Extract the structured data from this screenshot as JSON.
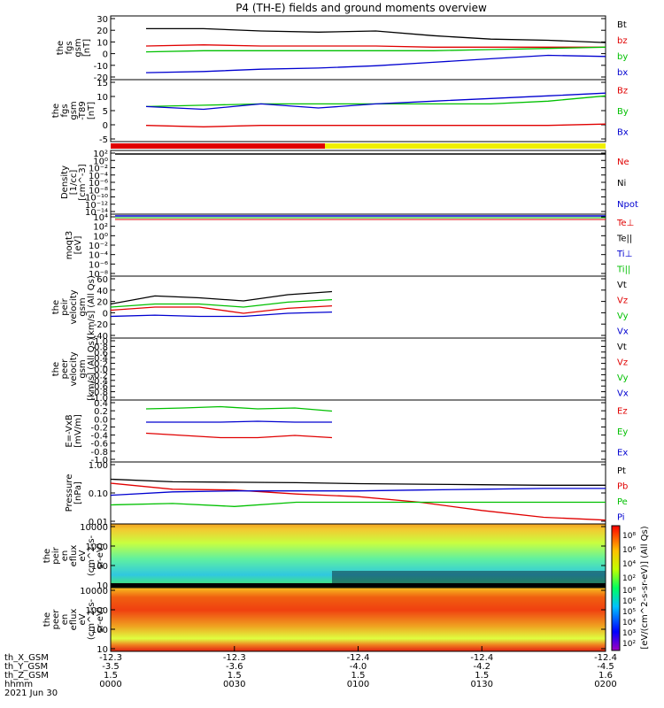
{
  "title": "P4 (TH-E) fields and ground moments overview",
  "colors": {
    "black": "#000000",
    "red": "#e00000",
    "green": "#00c000",
    "blue": "#0000d0",
    "yellow": "#f0f000"
  },
  "x_ticks": [
    "0000",
    "0030",
    "0100",
    "0130",
    "0200"
  ],
  "footer": {
    "row_labels": [
      "th_X_GSM",
      "th_Y_GSM",
      "th_Z_GSM",
      "hhmm",
      "2021 Jun 30"
    ],
    "x_values": [
      "-12.3",
      "-12.3",
      "-12.4",
      "-12.4",
      "-12.4"
    ],
    "y_values": [
      "-3.5",
      "-3.6",
      "-4.0",
      "-4.2",
      "-4.5"
    ],
    "z_values": [
      "1.5",
      "1.5",
      "1.5",
      "1.5",
      "1.6"
    ]
  },
  "colorbar": {
    "label": "[eV/(cm^2-s-sr-eV)] (All Qs)",
    "ticks_top": [
      "10^8",
      "10^6",
      "10^4",
      "10^2"
    ],
    "ticks_bottom": [
      "10^8",
      "10^6",
      "10^5",
      "10^4",
      "10^3",
      "10^2"
    ]
  },
  "chart_data": [
    {
      "type": "line",
      "panel": "fgs_gsm",
      "ylabel": [
        "the",
        "fgs",
        "gsm",
        "[nT]"
      ],
      "yticks": [
        "30",
        "20",
        "10",
        "0",
        "-10",
        "-20"
      ],
      "ylim": [
        -25,
        30
      ],
      "x": [
        0,
        15,
        30,
        45,
        60,
        75,
        90,
        105,
        120
      ],
      "series": [
        {
          "name": "Bt",
          "color": "black",
          "values": [
            19,
            19,
            17,
            16,
            17,
            13,
            10,
            9,
            7
          ]
        },
        {
          "name": "bz",
          "color": "red",
          "values": [
            4,
            5,
            4,
            4,
            4,
            3,
            3,
            3,
            3
          ]
        },
        {
          "name": "by",
          "color": "green",
          "values": [
            -1,
            0,
            0,
            0,
            0,
            0,
            1,
            2,
            3
          ]
        },
        {
          "name": "bx",
          "color": "blue",
          "values": [
            -19,
            -18,
            -16,
            -15,
            -13,
            -10,
            -7,
            -4,
            -5
          ]
        }
      ]
    },
    {
      "type": "line",
      "panel": "fgs_gse",
      "ylabel": [
        "the",
        "fgs",
        "gsm",
        "-T89",
        "[nT]"
      ],
      "yticks": [
        "15",
        "10",
        "5",
        "0",
        "-5"
      ],
      "ylim": [
        -8,
        15
      ],
      "x": [
        0,
        15,
        30,
        45,
        60,
        75,
        90,
        105,
        120
      ],
      "series": [
        {
          "name": "Bz",
          "color": "red",
          "values": [
            -2,
            -2.5,
            -2,
            -2,
            -2,
            -2,
            -2,
            -2,
            -1.5
          ]
        },
        {
          "name": "By",
          "color": "green",
          "values": [
            5,
            5.5,
            6,
            6,
            6,
            6,
            6,
            7,
            9
          ]
        },
        {
          "name": "Bx",
          "color": "blue",
          "values": [
            5,
            4,
            6,
            4.5,
            6,
            7,
            8,
            9,
            10
          ]
        }
      ]
    },
    {
      "type": "line",
      "panel": "density",
      "ylabel": [
        "Density",
        "[1/cc]",
        "[cm^-3]"
      ],
      "yticks": [
        "10^2",
        "10^0",
        "10^-2",
        "10^-4",
        "10^-6",
        "10^-8",
        "10^-10",
        "10^-12",
        "10^-14"
      ],
      "series": [
        {
          "name": "Ne",
          "color": "red"
        },
        {
          "name": "Ni",
          "color": "black"
        },
        {
          "name": "Npot",
          "color": "blue"
        }
      ]
    },
    {
      "type": "line",
      "panel": "temperature",
      "ylabel": [
        "moqt3",
        "[eV]"
      ],
      "yticks": [
        "10^4",
        "10^2",
        "10^0",
        "10^-2",
        "10^-4",
        "10^-6",
        "10^-8"
      ],
      "series": [
        {
          "name": "Te⊥",
          "color": "red"
        },
        {
          "name": "Te||",
          "color": "black"
        },
        {
          "name": "Ti⊥",
          "color": "blue"
        },
        {
          "name": "Ti||",
          "color": "green"
        }
      ]
    },
    {
      "type": "line",
      "panel": "peir_velocity",
      "ylabel": [
        "the",
        "peir",
        "velocity",
        "gsm",
        "[km/s] (All Qs)"
      ],
      "yticks": [
        "60",
        "40",
        "20",
        "0",
        "-20",
        "-40"
      ],
      "ylim": [
        -40,
        60
      ],
      "x": [
        0,
        10,
        20,
        30,
        40,
        50
      ],
      "series": [
        {
          "name": "Vt",
          "color": "black",
          "values": [
            15,
            28,
            25,
            20,
            30,
            35
          ]
        },
        {
          "name": "Vz",
          "color": "red",
          "values": [
            5,
            10,
            10,
            0,
            8,
            12
          ]
        },
        {
          "name": "Vy",
          "color": "green",
          "values": [
            10,
            15,
            15,
            10,
            18,
            22
          ]
        },
        {
          "name": "Vx",
          "color": "blue",
          "values": [
            -5,
            -3,
            -5,
            -5,
            0,
            2
          ]
        }
      ]
    },
    {
      "type": "line",
      "panel": "peer_velocity",
      "ylabel": [
        "the",
        "peer",
        "velocity",
        "gsm",
        "[km/s] (All Qs)"
      ],
      "yticks": [
        "1.0",
        "0.8",
        "0.6",
        "0.4",
        "0.2",
        "0.0",
        "-0.2",
        "-0.4",
        "-0.6",
        "-0.8",
        "-1.0"
      ],
      "series": [
        {
          "name": "Vt",
          "color": "black"
        },
        {
          "name": "Vz",
          "color": "red"
        },
        {
          "name": "Vy",
          "color": "green"
        },
        {
          "name": "Vx",
          "color": "blue"
        }
      ]
    },
    {
      "type": "line",
      "panel": "efield",
      "ylabel": [
        "E=-VxB",
        "[mV/m]"
      ],
      "yticks": [
        "0.4",
        "0.2",
        "0.0",
        "-0.2",
        "-0.4",
        "-0.6",
        "-0.8",
        "-1.0"
      ],
      "ylim": [
        -1.0,
        0.4
      ],
      "x": [
        0,
        10,
        20,
        30,
        40,
        50
      ],
      "series": [
        {
          "name": "Ez",
          "color": "red",
          "values": [
            -0.35,
            -0.4,
            -0.45,
            -0.45,
            -0.4,
            -0.45
          ]
        },
        {
          "name": "Ey",
          "color": "green",
          "values": [
            0.2,
            0.22,
            0.25,
            0.2,
            0.22,
            0.15
          ]
        },
        {
          "name": "Ex",
          "color": "blue",
          "values": [
            -0.1,
            -0.1,
            -0.1,
            -0.08,
            -0.1,
            -0.1
          ]
        }
      ]
    },
    {
      "type": "line",
      "panel": "pressure",
      "ylabel": [
        "Pressure",
        "[nPa]"
      ],
      "yticks": [
        "1.00",
        "0.10",
        "0.01"
      ],
      "x": [
        0,
        15,
        30,
        45,
        60,
        75,
        90,
        105,
        120
      ],
      "series": [
        {
          "name": "Pt",
          "color": "black",
          "values": [
            0.35,
            0.28,
            0.27,
            0.26,
            0.24,
            0.23,
            0.22,
            0.21,
            0.21
          ]
        },
        {
          "name": "Pb",
          "color": "red",
          "values": [
            0.25,
            0.15,
            0.14,
            0.1,
            0.08,
            0.05,
            0.025,
            0.014,
            0.011
          ]
        },
        {
          "name": "Pe",
          "color": "green",
          "values": [
            0.04,
            0.045,
            0.035,
            0.05,
            0.05,
            0.05,
            0.05,
            0.05,
            0.05
          ]
        },
        {
          "name": "Pi",
          "color": "blue",
          "values": [
            0.09,
            0.12,
            0.13,
            0.13,
            0.13,
            0.14,
            0.15,
            0.16,
            0.16
          ]
        }
      ]
    },
    {
      "type": "heatmap",
      "panel": "peir_eflux",
      "ylabel": [
        "the",
        "peir",
        "en",
        "eflux",
        "eV",
        "(cm^2-s-",
        "sr-eV)"
      ],
      "yticks": [
        "10000",
        "1000",
        "100",
        "10"
      ]
    },
    {
      "type": "heatmap",
      "panel": "peer_eflux",
      "ylabel": [
        "the",
        "peer",
        "en",
        "eflux",
        "eV",
        "(cm^2-s-",
        "sr-eV)"
      ],
      "yticks": [
        "10000",
        "1000",
        "100",
        "10"
      ]
    }
  ]
}
